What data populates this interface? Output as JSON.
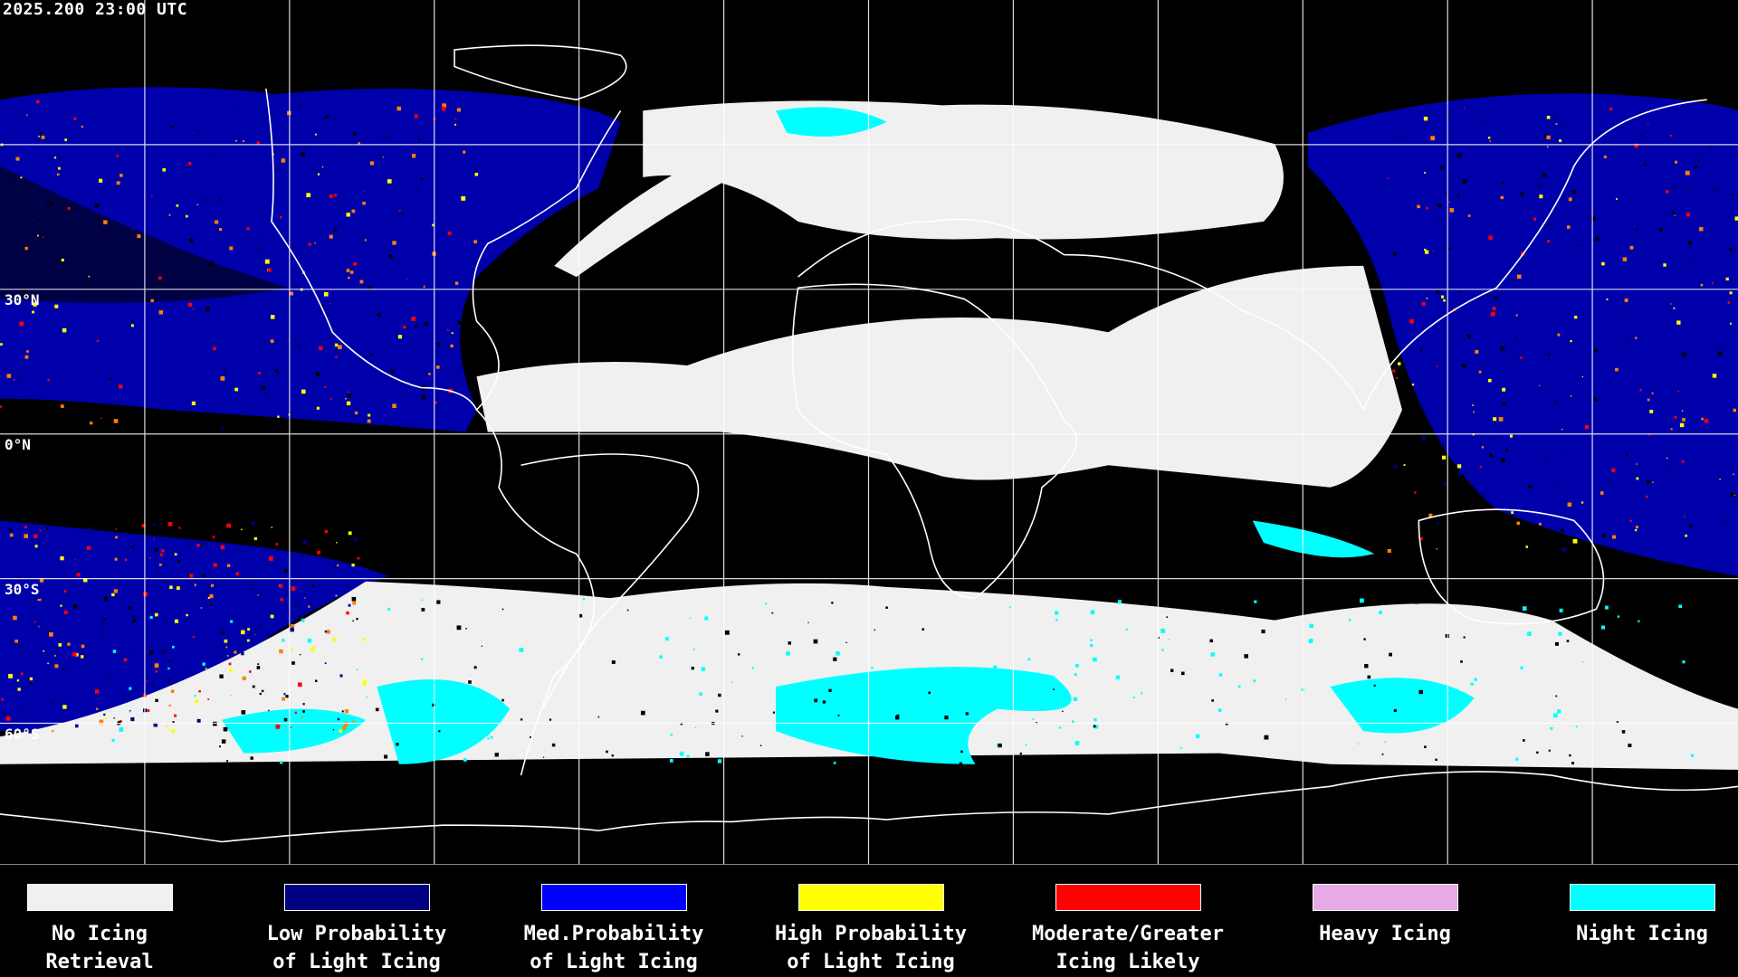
{
  "timestamp": "2025.200 23:00 UTC",
  "latitude_labels": [
    "30°N",
    "0°N",
    "30°S",
    "60°S"
  ],
  "legend": [
    {
      "line1": "No Icing",
      "line2": "Retrieval",
      "color": "#f0f0f0"
    },
    {
      "line1": "Low Probability",
      "line2": "of Light Icing",
      "color": "#000080"
    },
    {
      "line1": "Med.Probability",
      "line2": "of Light Icing",
      "color": "#0000ff"
    },
    {
      "line1": "High Probability",
      "line2": "of Light Icing",
      "color": "#ffff00"
    },
    {
      "line1": "Moderate/Greater",
      "line2": "Icing Likely",
      "color": "#ff0000"
    },
    {
      "line1": "Heavy Icing",
      "line2": "",
      "color": "#e8aae6"
    },
    {
      "line1": "Night Icing",
      "line2": "",
      "color": "#00ffff"
    }
  ]
}
